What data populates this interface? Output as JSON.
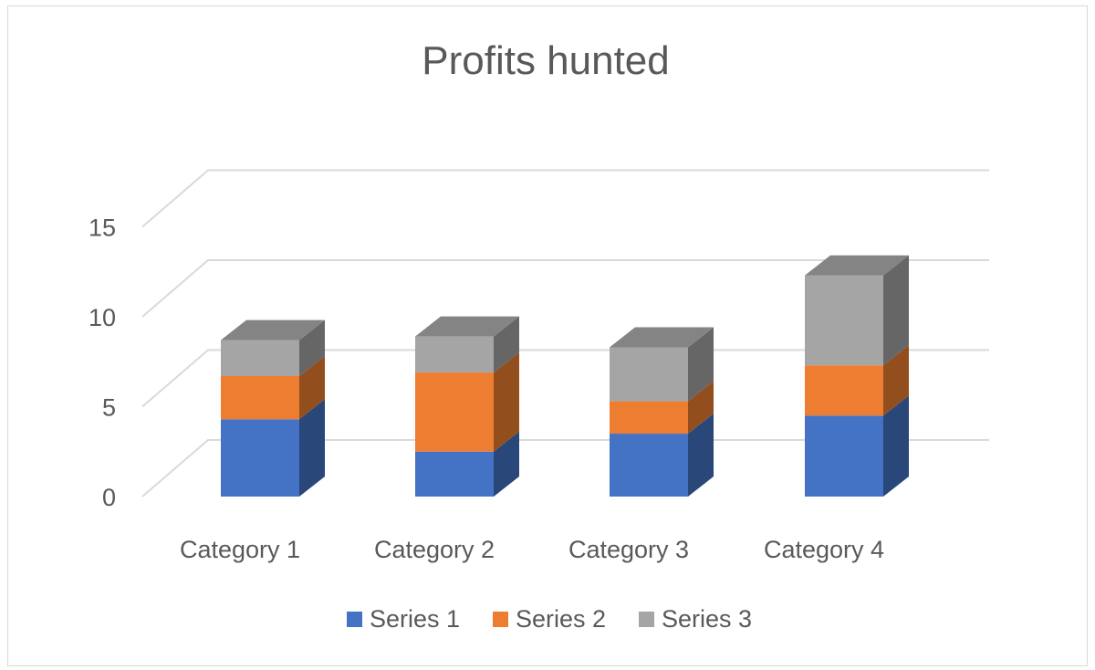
{
  "chart_data": {
    "type": "bar",
    "stacked": true,
    "title": "Profits hunted",
    "categories": [
      "Category 1",
      "Category 2",
      "Category 3",
      "Category 4"
    ],
    "series": [
      {
        "name": "Series 1",
        "values": [
          4.3,
          2.5,
          3.5,
          4.5
        ],
        "color": "#4472c4"
      },
      {
        "name": "Series 2",
        "values": [
          2.4,
          4.4,
          1.8,
          2.8
        ],
        "color": "#ed7d31"
      },
      {
        "name": "Series 3",
        "values": [
          2.0,
          2.0,
          3.0,
          5.0
        ],
        "color": "#a5a5a5"
      }
    ],
    "ylim": [
      0,
      15
    ],
    "yticks": [
      "0",
      "5",
      "10",
      "15"
    ],
    "grid": true,
    "legend": "bottom",
    "style": "3d-column"
  }
}
